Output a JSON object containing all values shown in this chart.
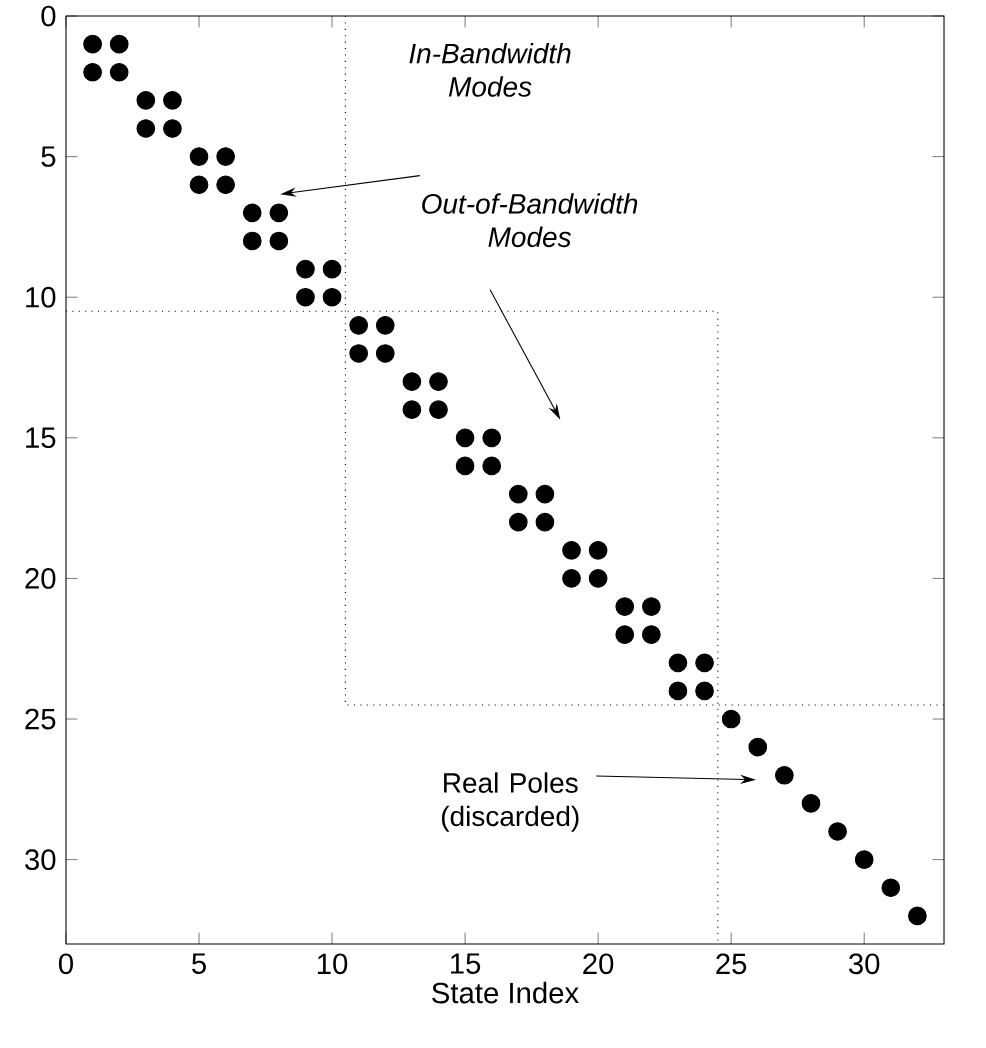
{
  "chart_data": {
    "type": "scatter",
    "xlabel": "State Index",
    "xlim": [
      0,
      33
    ],
    "ylim": [
      33,
      0
    ],
    "xticks": [
      0,
      5,
      10,
      15,
      20,
      25,
      30
    ],
    "yticks": [
      0,
      5,
      10,
      15,
      20,
      25,
      30
    ],
    "grid": false,
    "series": [
      {
        "color": "#000000",
        "x": [
          1,
          2,
          1,
          2,
          3,
          4,
          3,
          4,
          5,
          6,
          5,
          6,
          7,
          8,
          7,
          8,
          9,
          10,
          9,
          10,
          11,
          12,
          11,
          12,
          13,
          14,
          13,
          14,
          15,
          16,
          15,
          16,
          17,
          18,
          17,
          18,
          19,
          20,
          19,
          20,
          21,
          22,
          21,
          22,
          23,
          24,
          23,
          24,
          25,
          26,
          27,
          28,
          29,
          30,
          31,
          32
        ],
        "values": [
          1,
          1,
          2,
          2,
          3,
          3,
          4,
          4,
          5,
          5,
          6,
          6,
          7,
          7,
          8,
          8,
          9,
          9,
          10,
          10,
          11,
          11,
          12,
          12,
          13,
          13,
          14,
          14,
          15,
          15,
          16,
          16,
          17,
          17,
          18,
          18,
          19,
          19,
          20,
          20,
          21,
          21,
          22,
          22,
          23,
          23,
          24,
          24,
          25,
          26,
          27,
          28,
          29,
          30,
          31,
          32
        ]
      },
      {
        "type": "line",
        "color": "#000000",
        "line_style": "dotted",
        "x": [
          10.5,
          10.5,
          33
        ],
        "values": [
          0,
          24.5,
          24.5
        ]
      },
      {
        "type": "line",
        "color": "#000000",
        "line_style": "dotted",
        "x": [
          0,
          24.5,
          24.5
        ],
        "values": [
          10.5,
          10.5,
          33
        ]
      }
    ],
    "annotations": [
      "In-Bandwidth Modes",
      "Out-of-Bandwidth Modes",
      "Real Poles (discarded)"
    ]
  }
}
